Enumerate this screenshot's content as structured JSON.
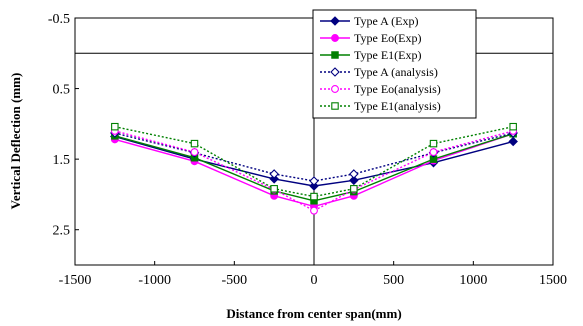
{
  "chart_data": {
    "type": "line",
    "title": "",
    "xlabel": "Distance from center span(mm)",
    "ylabel": "Vertical Deflection  (mm)",
    "xlim": [
      -1500,
      1500
    ],
    "ylim": [
      -0.5,
      3.0
    ],
    "y_inverted": true,
    "x_ticks": [
      "-1500",
      "-1000",
      "-500",
      "0",
      "500",
      "1000",
      "1500"
    ],
    "y_ticks": [
      "-0.5",
      "0.5",
      "1.5",
      "2.5"
    ],
    "grid": false,
    "legend_position": "top-right",
    "x": [
      -1250,
      -750,
      -250,
      0,
      250,
      750,
      1250
    ],
    "series": [
      {
        "name": "Type A (Exp)",
        "color": "#000080",
        "dash": "solid",
        "marker": "diamond-filled",
        "values": [
          1.18,
          1.5,
          1.78,
          1.88,
          1.8,
          1.55,
          1.25
        ]
      },
      {
        "name": "Type Eo(Exp)",
        "color": "#FF00FF",
        "dash": "solid",
        "marker": "circle-filled",
        "values": [
          1.22,
          1.53,
          2.02,
          2.17,
          2.02,
          1.52,
          1.14
        ]
      },
      {
        "name": "Type E1(Exp)",
        "color": "#008000",
        "dash": "solid",
        "marker": "square-filled",
        "values": [
          1.17,
          1.48,
          1.95,
          2.09,
          1.96,
          1.5,
          1.14
        ]
      },
      {
        "name": "Type A (analysis)",
        "color": "#000080",
        "dash": "dotted",
        "marker": "diamond-open",
        "values": [
          1.13,
          1.41,
          1.71,
          1.81,
          1.71,
          1.41,
          1.13
        ]
      },
      {
        "name": "Type Eo(analysis)",
        "color": "#FF00FF",
        "dash": "dotted",
        "marker": "circle-open",
        "values": [
          1.1,
          1.4,
          1.93,
          2.23,
          1.93,
          1.4,
          1.1
        ]
      },
      {
        "name": "Type E1(analysis)",
        "color": "#008000",
        "dash": "dotted",
        "marker": "square-open",
        "values": [
          1.04,
          1.28,
          1.92,
          2.03,
          1.92,
          1.28,
          1.04
        ]
      }
    ]
  }
}
